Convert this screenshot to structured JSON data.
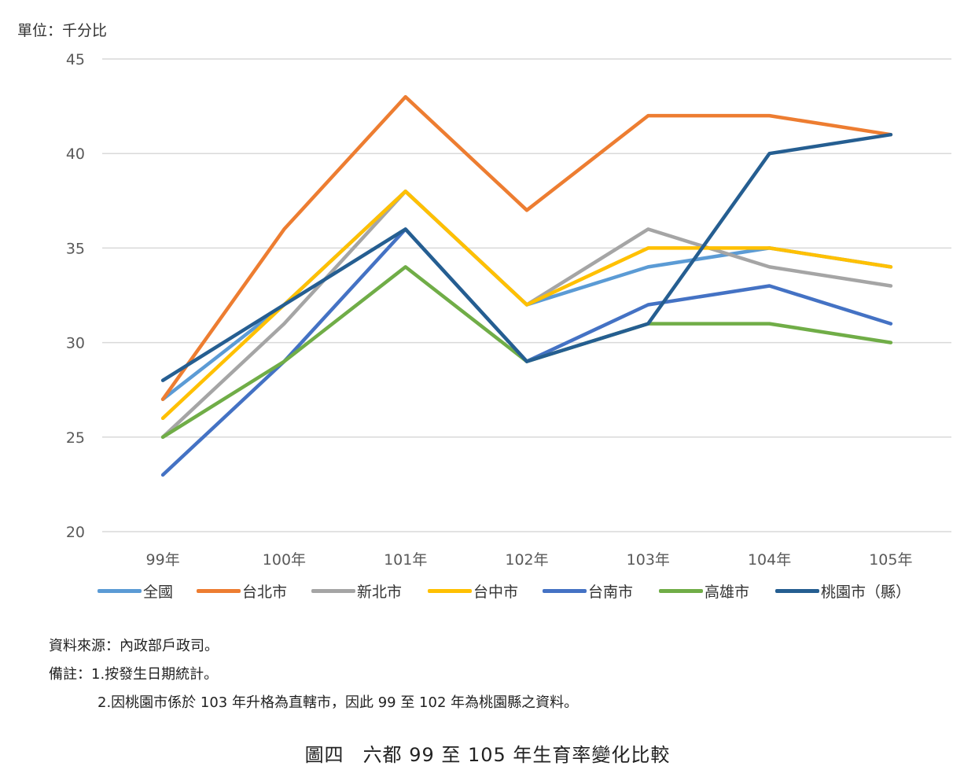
{
  "unit_label": "單位：千分比",
  "chart_data": {
    "type": "line",
    "categories": [
      "99年",
      "100年",
      "101年",
      "102年",
      "103年",
      "104年",
      "105年"
    ],
    "ylim": [
      20,
      45
    ],
    "yticks": [
      "20",
      "25",
      "30",
      "35",
      "40",
      "45"
    ],
    "grid": true,
    "legend_position": "bottom",
    "series": [
      {
        "name": "全國",
        "color": "#5B9BD5",
        "values": [
          27,
          32,
          38,
          32,
          34,
          35,
          34
        ]
      },
      {
        "name": "台北市",
        "color": "#ED7D31",
        "values": [
          27,
          36,
          43,
          37,
          42,
          42,
          41
        ]
      },
      {
        "name": "新北市",
        "color": "#A5A5A5",
        "values": [
          25,
          31,
          38,
          32,
          36,
          34,
          33
        ]
      },
      {
        "name": "台中市",
        "color": "#FFC000",
        "values": [
          26,
          32,
          38,
          32,
          35,
          35,
          34
        ]
      },
      {
        "name": "台南市",
        "color": "#4472C4",
        "values": [
          23,
          29,
          36,
          29,
          32,
          33,
          31
        ]
      },
      {
        "name": "高雄市",
        "color": "#70AD47",
        "values": [
          25,
          29,
          34,
          29,
          31,
          31,
          30
        ]
      },
      {
        "name": "桃園市（縣）",
        "color": "#255E91",
        "values": [
          28,
          32,
          36,
          29,
          31,
          40,
          41
        ]
      }
    ]
  },
  "notes": {
    "source": "資料來源：內政部戶政司。",
    "remark_1": "備註：1.按發生日期統計。",
    "remark_2": "2.因桃園市係於 103 年升格為直轄市，因此 99 至 102 年為桃園縣之資料。"
  },
  "caption": {
    "figure_no": "圖四",
    "title": "六都 99 至 105 年生育率變化比較"
  }
}
